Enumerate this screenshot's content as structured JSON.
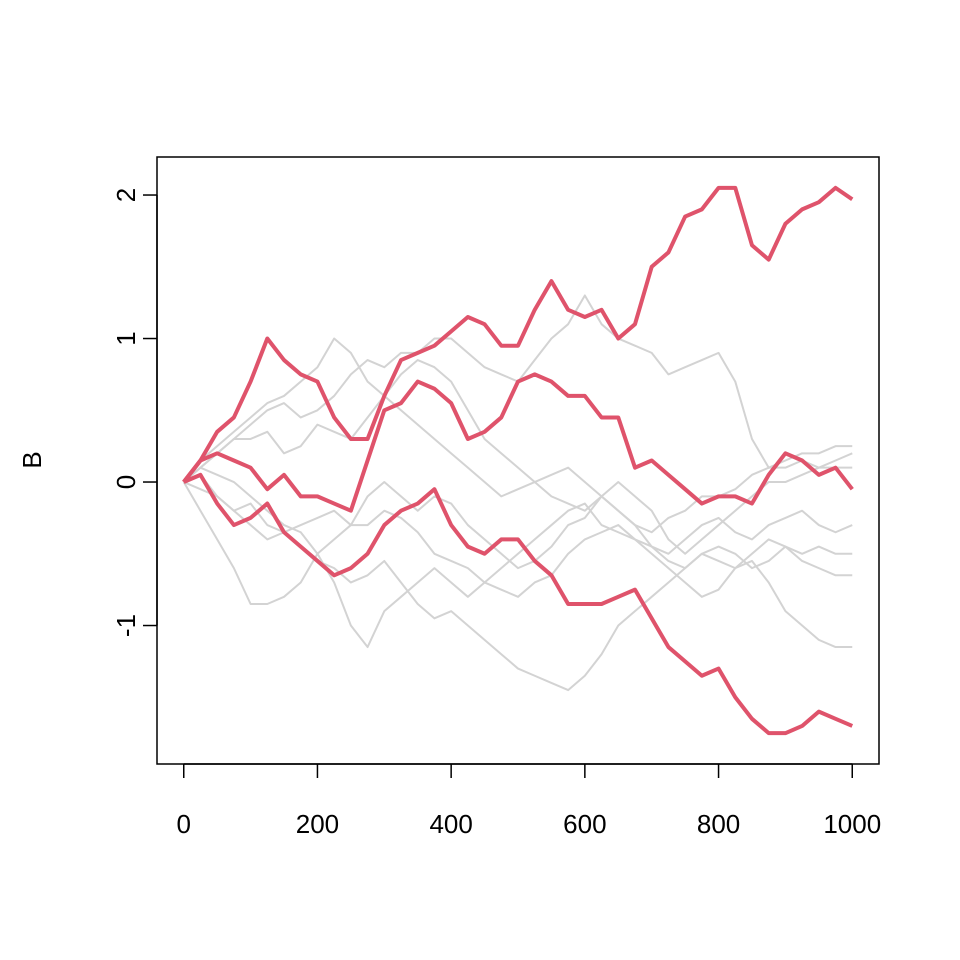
{
  "chart_data": {
    "type": "line",
    "y_label": "B",
    "x": [
      0,
      25,
      50,
      75,
      100,
      125,
      150,
      175,
      200,
      225,
      250,
      275,
      300,
      325,
      350,
      375,
      400,
      425,
      450,
      475,
      500,
      525,
      550,
      575,
      600,
      625,
      650,
      675,
      700,
      725,
      750,
      775,
      800,
      825,
      850,
      875,
      900,
      925,
      950,
      975,
      1000
    ],
    "series": [
      {
        "color": "#d3d3d3",
        "line_width": 2,
        "values": [
          0,
          0.1,
          0.2,
          0.3,
          0.4,
          0.5,
          0.55,
          0.45,
          0.5,
          0.6,
          0.75,
          0.85,
          0.8,
          0.9,
          0.9,
          1.0,
          1.0,
          0.9,
          0.8,
          0.75,
          0.7,
          0.85,
          1.0,
          1.1,
          1.3,
          1.1,
          1.0,
          0.95,
          0.9,
          0.75,
          0.8,
          0.85,
          0.9,
          0.7,
          0.3,
          0.1,
          0.15,
          0.2,
          0.2,
          0.25,
          0.25
        ]
      },
      {
        "color": "#d3d3d3",
        "line_width": 2,
        "values": [
          0,
          0.15,
          0.25,
          0.35,
          0.45,
          0.55,
          0.6,
          0.7,
          0.8,
          1.0,
          0.9,
          0.7,
          0.6,
          0.5,
          0.4,
          0.3,
          0.2,
          0.1,
          0,
          -0.1,
          -0.05,
          0,
          0.05,
          0.1,
          0,
          -0.1,
          -0.2,
          -0.3,
          -0.35,
          -0.25,
          -0.2,
          -0.1,
          -0.1,
          -0.05,
          0.05,
          0.1,
          0.1,
          0.15,
          0.1,
          0.1,
          0.1
        ]
      },
      {
        "color": "#d3d3d3",
        "line_width": 2,
        "values": [
          0,
          -0.2,
          -0.4,
          -0.6,
          -0.85,
          -0.85,
          -0.8,
          -0.7,
          -0.5,
          -0.4,
          -0.3,
          -0.3,
          -0.2,
          -0.25,
          -0.35,
          -0.5,
          -0.55,
          -0.6,
          -0.7,
          -0.75,
          -0.8,
          -0.7,
          -0.65,
          -0.5,
          -0.4,
          -0.35,
          -0.3,
          -0.4,
          -0.45,
          -0.55,
          -0.6,
          -0.5,
          -0.45,
          -0.5,
          -0.6,
          -0.55,
          -0.45,
          -0.5,
          -0.45,
          -0.5,
          -0.5
        ]
      },
      {
        "color": "#d3d3d3",
        "line_width": 2,
        "values": [
          0,
          -0.05,
          -0.1,
          -0.2,
          -0.3,
          -0.4,
          -0.35,
          -0.45,
          -0.55,
          -0.6,
          -0.7,
          -0.65,
          -0.55,
          -0.7,
          -0.85,
          -0.95,
          -0.9,
          -1.0,
          -1.1,
          -1.2,
          -1.3,
          -1.35,
          -1.4,
          -1.45,
          -1.35,
          -1.2,
          -1.0,
          -0.9,
          -0.8,
          -0.7,
          -0.6,
          -0.5,
          -0.55,
          -0.6,
          -0.5,
          -0.4,
          -0.45,
          -0.55,
          -0.6,
          -0.65,
          -0.65
        ]
      },
      {
        "color": "#d3d3d3",
        "line_width": 2,
        "values": [
          0,
          0.1,
          0.05,
          0,
          -0.1,
          -0.2,
          -0.3,
          -0.35,
          -0.5,
          -0.7,
          -1.0,
          -1.15,
          -0.9,
          -0.8,
          -0.7,
          -0.6,
          -0.7,
          -0.8,
          -0.7,
          -0.6,
          -0.5,
          -0.4,
          -0.3,
          -0.2,
          -0.15,
          -0.3,
          -0.35,
          -0.4,
          -0.5,
          -0.6,
          -0.7,
          -0.8,
          -0.75,
          -0.6,
          -0.55,
          -0.7,
          -0.9,
          -1.0,
          -1.1,
          -1.15,
          -1.15
        ]
      },
      {
        "color": "#d3d3d3",
        "line_width": 2,
        "values": [
          0,
          0.1,
          0.2,
          0.3,
          0.3,
          0.35,
          0.2,
          0.25,
          0.4,
          0.35,
          0.3,
          0.45,
          0.6,
          0.75,
          0.85,
          0.8,
          0.7,
          0.5,
          0.3,
          0.2,
          0.1,
          0,
          -0.1,
          -0.15,
          -0.2,
          -0.1,
          0,
          -0.1,
          -0.2,
          -0.4,
          -0.5,
          -0.4,
          -0.3,
          -0.2,
          -0.1,
          0,
          0,
          0.05,
          0.1,
          0.15,
          0.2
        ]
      },
      {
        "color": "#d3d3d3",
        "line_width": 2,
        "values": [
          0,
          0.05,
          -0.1,
          -0.2,
          -0.15,
          -0.3,
          -0.35,
          -0.3,
          -0.25,
          -0.2,
          -0.3,
          -0.1,
          0,
          -0.1,
          -0.2,
          -0.1,
          -0.15,
          -0.3,
          -0.4,
          -0.5,
          -0.6,
          -0.55,
          -0.45,
          -0.3,
          -0.25,
          -0.1,
          -0.2,
          -0.3,
          -0.45,
          -0.5,
          -0.4,
          -0.3,
          -0.25,
          -0.35,
          -0.4,
          -0.3,
          -0.25,
          -0.2,
          -0.3,
          -0.35,
          -0.3
        ]
      },
      {
        "color": "#df536b",
        "line_width": 4,
        "values": [
          0,
          0.15,
          0.35,
          0.45,
          0.7,
          1.0,
          0.85,
          0.75,
          0.7,
          0.45,
          0.3,
          0.3,
          0.6,
          0.85,
          0.9,
          0.95,
          1.05,
          1.15,
          1.1,
          0.95,
          0.95,
          1.2,
          1.4,
          1.2,
          1.15,
          1.2,
          1.0,
          1.1,
          1.5,
          1.6,
          1.85,
          1.9,
          2.05,
          2.05,
          1.65,
          1.55,
          1.8,
          1.9,
          1.95,
          2.05,
          1.97
        ]
      },
      {
        "color": "#df536b",
        "line_width": 4,
        "values": [
          0,
          0.15,
          0.2,
          0.15,
          0.1,
          -0.05,
          0.05,
          -0.1,
          -0.1,
          -0.15,
          -0.2,
          0.15,
          0.5,
          0.55,
          0.7,
          0.65,
          0.55,
          0.3,
          0.35,
          0.45,
          0.7,
          0.75,
          0.7,
          0.6,
          0.6,
          0.45,
          0.45,
          0.1,
          0.15,
          0.05,
          -0.05,
          -0.15,
          -0.1,
          -0.1,
          -0.15,
          0.05,
          0.2,
          0.15,
          0.05,
          0.1,
          -0.05
        ]
      },
      {
        "color": "#df536b",
        "line_width": 4,
        "values": [
          0,
          0.05,
          -0.15,
          -0.3,
          -0.25,
          -0.15,
          -0.35,
          -0.45,
          -0.55,
          -0.65,
          -0.6,
          -0.5,
          -0.3,
          -0.2,
          -0.15,
          -0.05,
          -0.3,
          -0.45,
          -0.5,
          -0.4,
          -0.4,
          -0.55,
          -0.65,
          -0.85,
          -0.85,
          -0.85,
          -0.8,
          -0.75,
          -0.95,
          -1.15,
          -1.25,
          -1.35,
          -1.3,
          -1.5,
          -1.65,
          -1.75,
          -1.75,
          -1.7,
          -1.6,
          -1.65,
          -1.7
        ]
      }
    ],
    "xlim": [
      -40,
      1040
    ],
    "ylim": [
      -1.965,
      2.265
    ],
    "xticks": [
      0,
      200,
      400,
      600,
      800,
      1000
    ],
    "yticks": [
      -1,
      0,
      1,
      2
    ]
  }
}
